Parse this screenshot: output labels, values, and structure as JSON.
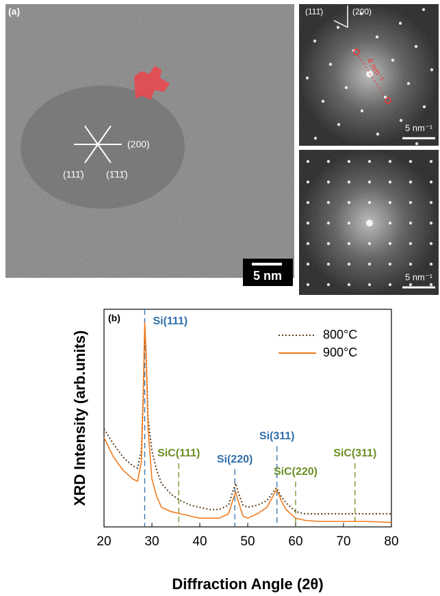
{
  "panel_a": {
    "label": "(a)",
    "lattice_labels": [
      "(200)",
      "(111̄)",
      "(1̄11̄)"
    ],
    "fft_top": {
      "direction_labels": [
        "(111̄)",
        "(200)"
      ],
      "spacing_label": "4 nm⁻¹",
      "scale_label": "5 nm⁻¹"
    },
    "fft_bottom": {
      "scale_label": "5 nm⁻¹"
    },
    "scale_bar": "5 nm"
  },
  "chart_data": {
    "type": "line",
    "panel_label": "(b)",
    "x_label": "Diffraction Angle (2θ)",
    "y_label": "XRD Intensity (arb.units)",
    "xlim": [
      20,
      80
    ],
    "xticks": [
      20,
      30,
      40,
      50,
      60,
      70,
      80
    ],
    "ylim": [
      0,
      100
    ],
    "legend": "upper right",
    "x": [
      20,
      22,
      24,
      26,
      27,
      27.8,
      28.2,
      28.5,
      28.8,
      29.2,
      30,
      31,
      32,
      34,
      36,
      38,
      40,
      42,
      44,
      46,
      47,
      47.5,
      48,
      49,
      50,
      52,
      54,
      55,
      56,
      56.5,
      57,
      58,
      60,
      62,
      65,
      70,
      75,
      80
    ],
    "series": [
      {
        "name": "800°C",
        "color": "#5a3a12",
        "line_style": "dotted",
        "values": [
          45,
          38,
          32,
          28,
          27,
          35,
          62,
          90,
          78,
          50,
          35,
          26,
          20,
          15,
          12,
          10,
          9,
          8,
          8,
          10,
          17,
          20,
          16,
          10,
          9,
          10,
          12,
          15,
          18,
          16,
          14,
          11,
          7,
          6,
          6,
          6,
          6,
          6
        ]
      },
      {
        "name": "900°C",
        "color": "#f07a1e",
        "line_style": "solid",
        "values": [
          41,
          32,
          26,
          22,
          21,
          30,
          60,
          94,
          80,
          45,
          22,
          14,
          9,
          7,
          6,
          5,
          4,
          4,
          4,
          6,
          13,
          16,
          12,
          5,
          4,
          6,
          9,
          13,
          17,
          15,
          12,
          8,
          4,
          3,
          2.5,
          2.5,
          2.5,
          2
        ]
      }
    ],
    "annotations": [
      {
        "text": "Si(111)",
        "x": 28.5,
        "color": "#2f6eaa"
      },
      {
        "text": "SiC(111)",
        "x": 35.6,
        "color": "#6b8e23"
      },
      {
        "text": "Si(220)",
        "x": 47.3,
        "color": "#2f6eaa"
      },
      {
        "text": "Si(311)",
        "x": 56.1,
        "color": "#2f6eaa"
      },
      {
        "text": "SiC(220)",
        "x": 60.0,
        "color": "#6b8e23"
      },
      {
        "text": "SiC(311)",
        "x": 72.4,
        "color": "#6b8e23"
      }
    ]
  }
}
